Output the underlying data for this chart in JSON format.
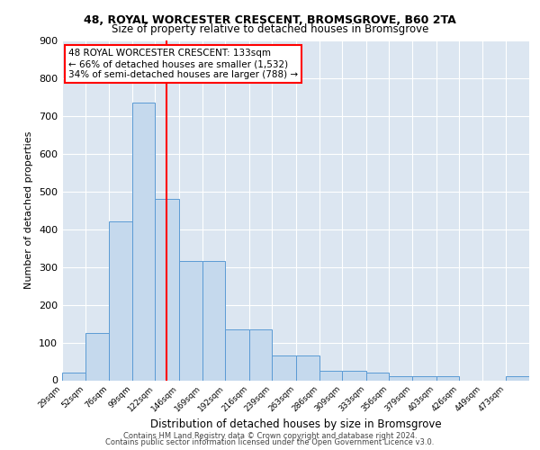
{
  "title1": "48, ROYAL WORCESTER CRESCENT, BROMSGROVE, B60 2TA",
  "title2": "Size of property relative to detached houses in Bromsgrove",
  "xlabel": "Distribution of detached houses by size in Bromsgrove",
  "ylabel": "Number of detached properties",
  "annotation_line1": "48 ROYAL WORCESTER CRESCENT: 133sqm",
  "annotation_line2": "← 66% of detached houses are smaller (1,532)",
  "annotation_line3": "34% of semi-detached houses are larger (788) →",
  "bar_edges": [
    29,
    52,
    76,
    99,
    122,
    146,
    169,
    192,
    216,
    239,
    263,
    286,
    309,
    333,
    356,
    379,
    403,
    426,
    449,
    473,
    496
  ],
  "bar_heights": [
    20,
    125,
    420,
    735,
    480,
    315,
    315,
    135,
    135,
    65,
    65,
    25,
    25,
    20,
    10,
    10,
    10,
    0,
    0,
    10
  ],
  "bar_color": "#c5d9ed",
  "bar_edge_color": "#5b9bd5",
  "vline_x": 133,
  "vline_color": "red",
  "ylim": [
    0,
    900
  ],
  "yticks": [
    0,
    100,
    200,
    300,
    400,
    500,
    600,
    700,
    800,
    900
  ],
  "bg_color": "#dce6f1",
  "grid_color": "white",
  "footer1": "Contains HM Land Registry data © Crown copyright and database right 2024.",
  "footer2": "Contains public sector information licensed under the Open Government Licence v3.0."
}
